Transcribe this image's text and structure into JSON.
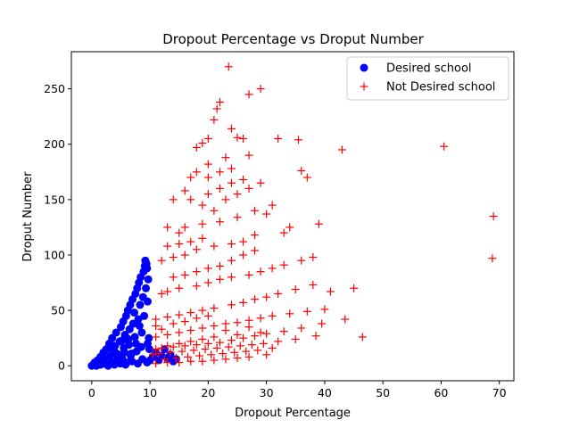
{
  "chart_data": {
    "type": "scatter",
    "title": "Dropout Percentage vs Droput Number",
    "xlabel": "Dropout Percentage",
    "ylabel": "Droput Number",
    "xlim": [
      -3.5,
      72.5
    ],
    "ylim": [
      -13.5,
      283.5
    ],
    "x_ticks": [
      0,
      10,
      20,
      30,
      40,
      50,
      60,
      70
    ],
    "y_ticks": [
      0,
      50,
      100,
      150,
      200,
      250
    ],
    "grid": false,
    "legend": {
      "position": "top-right"
    },
    "series": [
      {
        "name": "Desired school",
        "marker": "circle",
        "color": "#0000ff",
        "points": [
          [
            0.0,
            0
          ],
          [
            0.3,
            1
          ],
          [
            0.5,
            3
          ],
          [
            0.8,
            0
          ],
          [
            1.0,
            5
          ],
          [
            1.2,
            2
          ],
          [
            1.5,
            8
          ],
          [
            1.7,
            4
          ],
          [
            2.0,
            12
          ],
          [
            2.2,
            6
          ],
          [
            2.5,
            15
          ],
          [
            2.7,
            3
          ],
          [
            3.0,
            20
          ],
          [
            3.2,
            9
          ],
          [
            3.5,
            25
          ],
          [
            3.6,
            2
          ],
          [
            3.8,
            14
          ],
          [
            4.0,
            18
          ],
          [
            4.2,
            30
          ],
          [
            4.4,
            5
          ],
          [
            4.6,
            10
          ],
          [
            4.8,
            22
          ],
          [
            5.0,
            35
          ],
          [
            5.2,
            7
          ],
          [
            5.4,
            40
          ],
          [
            5.5,
            16
          ],
          [
            5.7,
            28
          ],
          [
            5.9,
            45
          ],
          [
            6.0,
            3
          ],
          [
            6.2,
            50
          ],
          [
            6.3,
            24
          ],
          [
            6.5,
            33
          ],
          [
            6.6,
            55
          ],
          [
            6.8,
            11
          ],
          [
            7.0,
            60
          ],
          [
            7.1,
            38
          ],
          [
            7.3,
            48
          ],
          [
            7.5,
            65
          ],
          [
            7.6,
            20
          ],
          [
            7.8,
            70
          ],
          [
            8.0,
            42
          ],
          [
            8.1,
            75
          ],
          [
            8.3,
            55
          ],
          [
            8.4,
            80
          ],
          [
            8.6,
            30
          ],
          [
            8.8,
            62
          ],
          [
            8.9,
            85
          ],
          [
            9.0,
            45
          ],
          [
            9.1,
            90
          ],
          [
            9.2,
            95
          ],
          [
            9.3,
            70
          ],
          [
            9.4,
            92
          ],
          [
            9.5,
            88
          ],
          [
            9.6,
            58
          ],
          [
            9.7,
            78
          ],
          [
            9.8,
            25
          ],
          [
            9.9,
            15
          ],
          [
            1.5,
            1
          ],
          [
            2.8,
            0
          ],
          [
            3.9,
            1
          ],
          [
            4.9,
            2
          ],
          [
            5.8,
            1
          ],
          [
            6.9,
            4
          ],
          [
            7.9,
            2
          ],
          [
            8.7,
            6
          ],
          [
            9.5,
            3
          ],
          [
            10.5,
            8
          ],
          [
            11.0,
            12
          ],
          [
            11.5,
            5
          ],
          [
            12.0,
            9
          ],
          [
            12.5,
            15
          ],
          [
            13.0,
            7
          ],
          [
            13.5,
            10
          ],
          [
            14.0,
            4
          ],
          [
            14.5,
            6
          ],
          [
            2.0,
            2
          ],
          [
            3.3,
            4
          ],
          [
            4.5,
            7
          ],
          [
            5.6,
            12
          ],
          [
            6.7,
            9
          ],
          [
            7.7,
            13
          ],
          [
            8.5,
            17
          ],
          [
            9.6,
            20
          ],
          [
            10.0,
            5
          ],
          [
            8.2,
            36
          ],
          [
            7.4,
            26
          ],
          [
            6.4,
            19
          ],
          [
            5.3,
            23
          ],
          [
            4.3,
            11
          ],
          [
            3.4,
            16
          ]
        ]
      },
      {
        "name": "Not Desired school",
        "marker": "plus",
        "color": "#ff0000",
        "points": [
          [
            23.5,
            270
          ],
          [
            29,
            250
          ],
          [
            27,
            245
          ],
          [
            22,
            238
          ],
          [
            21.5,
            232
          ],
          [
            21,
            222
          ],
          [
            24,
            214
          ],
          [
            25,
            206
          ],
          [
            26,
            205
          ],
          [
            32,
            205
          ],
          [
            20,
            205
          ],
          [
            19,
            201
          ],
          [
            18,
            197
          ],
          [
            60.5,
            198
          ],
          [
            43,
            195
          ],
          [
            35.5,
            204
          ],
          [
            27,
            190
          ],
          [
            23,
            188
          ],
          [
            20,
            182
          ],
          [
            18,
            175
          ],
          [
            17,
            170
          ],
          [
            36,
            176
          ],
          [
            37,
            170
          ],
          [
            26,
            168
          ],
          [
            24,
            165
          ],
          [
            22,
            160
          ],
          [
            20,
            155
          ],
          [
            16,
            158
          ],
          [
            14,
            150
          ],
          [
            31,
            145
          ],
          [
            30,
            137
          ],
          [
            28,
            140
          ],
          [
            25,
            134
          ],
          [
            22,
            130
          ],
          [
            19,
            128
          ],
          [
            16,
            125
          ],
          [
            13,
            125
          ],
          [
            15,
            120
          ],
          [
            69,
            135
          ],
          [
            39,
            128
          ],
          [
            34,
            125
          ],
          [
            33,
            120
          ],
          [
            28,
            118
          ],
          [
            26,
            112
          ],
          [
            24,
            110
          ],
          [
            21,
            108
          ],
          [
            18,
            105
          ],
          [
            16,
            100
          ],
          [
            14,
            98
          ],
          [
            12,
            95
          ],
          [
            68.8,
            97
          ],
          [
            38,
            98
          ],
          [
            36,
            95
          ],
          [
            33,
            91
          ],
          [
            31,
            88
          ],
          [
            29,
            85
          ],
          [
            27,
            82
          ],
          [
            24,
            80
          ],
          [
            22,
            78
          ],
          [
            20,
            75
          ],
          [
            18,
            72
          ],
          [
            15,
            70
          ],
          [
            13,
            67
          ],
          [
            12,
            65
          ],
          [
            45,
            70
          ],
          [
            41,
            67
          ],
          [
            38,
            73
          ],
          [
            35,
            69
          ],
          [
            32,
            65
          ],
          [
            30,
            62
          ],
          [
            28,
            60
          ],
          [
            26,
            57
          ],
          [
            24,
            55
          ],
          [
            21,
            52
          ],
          [
            19,
            50
          ],
          [
            17,
            48
          ],
          [
            15,
            46
          ],
          [
            13,
            44
          ],
          [
            11,
            42
          ],
          [
            40,
            51
          ],
          [
            37,
            49
          ],
          [
            34,
            47
          ],
          [
            31,
            45
          ],
          [
            29,
            43
          ],
          [
            27,
            41
          ],
          [
            25,
            39
          ],
          [
            23,
            38
          ],
          [
            21,
            36
          ],
          [
            19,
            34
          ],
          [
            17,
            32
          ],
          [
            15,
            30
          ],
          [
            13,
            28
          ],
          [
            11,
            26
          ],
          [
            43.5,
            42
          ],
          [
            39.5,
            38
          ],
          [
            36,
            34
          ],
          [
            33,
            31
          ],
          [
            30,
            29
          ],
          [
            28,
            27
          ],
          [
            26,
            25
          ],
          [
            24,
            23
          ],
          [
            22,
            21
          ],
          [
            20,
            20
          ],
          [
            18,
            19
          ],
          [
            16,
            18
          ],
          [
            14,
            17
          ],
          [
            12,
            16
          ],
          [
            11,
            15
          ],
          [
            46.5,
            26
          ],
          [
            38.5,
            27
          ],
          [
            35,
            24
          ],
          [
            32,
            22
          ],
          [
            29.5,
            20
          ],
          [
            27.5,
            19
          ],
          [
            25.5,
            18
          ],
          [
            23.5,
            17
          ],
          [
            21.5,
            16
          ],
          [
            19.5,
            15
          ],
          [
            17.5,
            14
          ],
          [
            15.5,
            13
          ],
          [
            13.5,
            12
          ],
          [
            11.5,
            11
          ],
          [
            10.5,
            10
          ],
          [
            31,
            16
          ],
          [
            28.5,
            14
          ],
          [
            26.5,
            13
          ],
          [
            24.5,
            12
          ],
          [
            22.5,
            11
          ],
          [
            20.5,
            10
          ],
          [
            18.5,
            9
          ],
          [
            16.5,
            8
          ],
          [
            14.5,
            7
          ],
          [
            12.5,
            6
          ],
          [
            30,
            10
          ],
          [
            27,
            8
          ],
          [
            25,
            7
          ],
          [
            23,
            6
          ],
          [
            21,
            5
          ],
          [
            19,
            4
          ],
          [
            17,
            4
          ],
          [
            15,
            3
          ],
          [
            13,
            3
          ],
          [
            11,
            2
          ],
          [
            29,
            30
          ],
          [
            27,
            35
          ],
          [
            25,
            28
          ],
          [
            23,
            32
          ],
          [
            21,
            26
          ],
          [
            19,
            24
          ],
          [
            17,
            22
          ],
          [
            15,
            20
          ],
          [
            13,
            18
          ],
          [
            22,
            90
          ],
          [
            20,
            88
          ],
          [
            18,
            85
          ],
          [
            16,
            82
          ],
          [
            14,
            80
          ],
          [
            24,
            95
          ],
          [
            26,
            100
          ],
          [
            28,
            104
          ],
          [
            21,
            140
          ],
          [
            19,
            145
          ],
          [
            17,
            150
          ],
          [
            23,
            150
          ],
          [
            25,
            155
          ],
          [
            27,
            160
          ],
          [
            29,
            165
          ],
          [
            20,
            170
          ],
          [
            22,
            175
          ],
          [
            24,
            178
          ],
          [
            19,
            115
          ],
          [
            17,
            112
          ],
          [
            15,
            110
          ],
          [
            13,
            108
          ],
          [
            11,
            36
          ],
          [
            12,
            33
          ],
          [
            14,
            38
          ],
          [
            16,
            40
          ],
          [
            18,
            43
          ],
          [
            20,
            45
          ]
        ]
      }
    ]
  }
}
